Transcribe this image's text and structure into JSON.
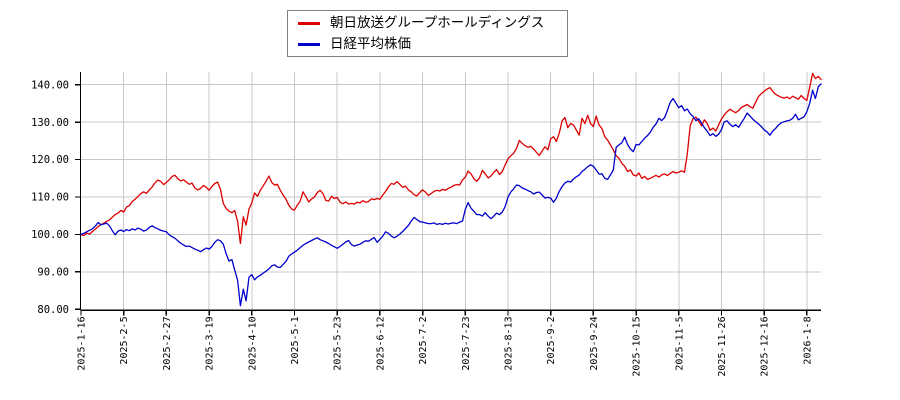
{
  "chart_data": {
    "type": "line",
    "title": "",
    "xlabel": "",
    "ylabel": "",
    "grid": true,
    "legend_position": "top-center",
    "ylim": [
      80,
      143.4
    ],
    "y_ticks": [
      80,
      90,
      100,
      110,
      120,
      130,
      140
    ],
    "y_tick_labels": [
      "80.00",
      "90.00",
      "100.00",
      "110.00",
      "120.00",
      "130.00",
      "140.00"
    ],
    "x_tick_labels": [
      "2025-1-16",
      "2025-2-5",
      "2025-2-27",
      "2025-3-19",
      "2025-4-10",
      "2025-5-1",
      "2025-5-23",
      "2025-6-12",
      "2025-7-2",
      "2025-7-23",
      "2025-8-13",
      "2025-9-2",
      "2025-9-24",
      "2025-10-15",
      "2025-11-5",
      "2025-11-26",
      "2025-12-16",
      "2026-1-8"
    ],
    "trading_days_per_tick": 15,
    "base_value": 100,
    "series": [
      {
        "name": "朝日放送グループホールディングス",
        "color": "#dd0000",
        "values": [
          100.0,
          99.7,
          100.4,
          100.1,
          100.8,
          101.4,
          102.1,
          102.6,
          103.0,
          103.5,
          103.9,
          104.6,
          105.3,
          105.7,
          106.4,
          106.0,
          107.3,
          107.7,
          108.8,
          109.4,
          110.1,
          110.9,
          111.4,
          111.0,
          111.9,
          112.7,
          113.8,
          114.5,
          114.2,
          113.3,
          113.9,
          114.6,
          115.5,
          115.8,
          114.9,
          114.3,
          114.6,
          114.0,
          113.4,
          113.7,
          112.4,
          111.9,
          112.3,
          113.1,
          112.6,
          111.8,
          112.8,
          113.6,
          114.0,
          112.0,
          108.3,
          106.9,
          106.2,
          105.8,
          106.4,
          103.5,
          97.6,
          104.7,
          102.5,
          106.8,
          108.4,
          111.1,
          110.2,
          111.8,
          113.0,
          114.2,
          115.6,
          113.9,
          113.2,
          113.4,
          111.8,
          110.5,
          109.4,
          107.8,
          106.8,
          106.5,
          107.8,
          108.9,
          111.4,
          110.1,
          108.7,
          109.5,
          110.0,
          111.2,
          111.8,
          110.9,
          109.1,
          108.9,
          110.2,
          109.6,
          109.9,
          108.6,
          108.2,
          108.7,
          108.1,
          108.3,
          108.1,
          108.6,
          108.4,
          109.0,
          108.6,
          108.8,
          109.5,
          109.3,
          109.6,
          109.4,
          110.5,
          111.5,
          112.7,
          113.6,
          113.4,
          114.1,
          113.4,
          112.6,
          112.9,
          111.9,
          111.4,
          110.6,
          110.3,
          111.2,
          111.9,
          111.3,
          110.4,
          110.9,
          111.5,
          111.8,
          111.6,
          112.0,
          111.8,
          112.3,
          112.6,
          113.1,
          113.3,
          113.2,
          114.5,
          115.3,
          116.9,
          116.2,
          114.9,
          114.2,
          115.1,
          117.1,
          116.2,
          115.1,
          115.6,
          116.6,
          117.3,
          116.0,
          116.8,
          118.6,
          120.2,
          121.0,
          121.7,
          123.0,
          125.1,
          124.3,
          123.7,
          123.3,
          123.5,
          122.8,
          121.9,
          121.1,
          122.3,
          123.4,
          122.6,
          125.5,
          126.1,
          124.8,
          127.0,
          130.3,
          131.2,
          128.5,
          129.6,
          129.2,
          127.9,
          126.5,
          131.0,
          129.6,
          131.8,
          129.6,
          128.8,
          131.6,
          129.2,
          128.3,
          126.1,
          125.2,
          123.9,
          122.6,
          121.0,
          120.3,
          119.0,
          118.2,
          116.8,
          117.2,
          115.9,
          115.6,
          116.4,
          115.0,
          115.5,
          114.7,
          115.0,
          115.4,
          115.8,
          115.3,
          115.9,
          116.2,
          115.7,
          116.3,
          116.8,
          116.4,
          116.6,
          117.0,
          116.6,
          121.5,
          129.0,
          130.9,
          131.3,
          130.2,
          129.0,
          130.6,
          129.6,
          127.8,
          128.4,
          127.6,
          129.3,
          130.8,
          131.9,
          132.8,
          133.4,
          132.9,
          132.5,
          133.1,
          133.9,
          134.3,
          134.7,
          134.1,
          133.7,
          135.3,
          136.8,
          137.6,
          138.2,
          138.8,
          139.2,
          138.2,
          137.4,
          137.0,
          136.6,
          136.4,
          136.7,
          136.2,
          136.9,
          136.5,
          136.1,
          137.1,
          136.3,
          135.8,
          139.3,
          143.0,
          141.6,
          142.2,
          141.4
        ]
      },
      {
        "name": "日経平均株価",
        "color": "#0000cc",
        "values": [
          100.0,
          100.3,
          100.7,
          101.1,
          101.5,
          102.2,
          103.2,
          102.6,
          102.8,
          103.0,
          102.3,
          101.0,
          99.9,
          100.9,
          101.2,
          100.8,
          101.3,
          101.0,
          101.5,
          101.2,
          101.7,
          101.4,
          100.9,
          101.2,
          101.9,
          102.3,
          101.8,
          101.5,
          101.1,
          100.9,
          100.7,
          99.9,
          99.4,
          99.0,
          98.3,
          97.7,
          97.2,
          96.8,
          96.9,
          96.5,
          96.1,
          95.8,
          95.4,
          95.9,
          96.4,
          96.1,
          96.8,
          97.9,
          98.6,
          98.3,
          97.4,
          94.8,
          92.9,
          93.3,
          90.5,
          87.8,
          81.0,
          85.4,
          82.3,
          88.6,
          89.3,
          87.9,
          88.7,
          89.1,
          89.7,
          90.2,
          90.8,
          91.6,
          91.9,
          91.3,
          91.2,
          92.0,
          92.8,
          94.2,
          94.8,
          95.3,
          95.8,
          96.5,
          97.1,
          97.6,
          98.0,
          98.4,
          98.8,
          99.1,
          98.6,
          98.3,
          98.0,
          97.6,
          97.1,
          96.7,
          96.3,
          96.8,
          97.4,
          98.0,
          98.4,
          97.3,
          96.9,
          97.2,
          97.4,
          97.9,
          98.3,
          98.2,
          98.7,
          99.2,
          97.9,
          98.7,
          99.5,
          100.7,
          100.3,
          99.6,
          99.1,
          99.5,
          100.1,
          100.8,
          101.6,
          102.4,
          103.6,
          104.5,
          104.0,
          103.4,
          103.3,
          103.1,
          102.9,
          102.9,
          103.1,
          102.7,
          102.9,
          102.7,
          103.0,
          102.8,
          103.0,
          103.1,
          102.9,
          103.3,
          103.6,
          106.7,
          108.5,
          107.0,
          106.2,
          105.3,
          105.3,
          104.9,
          105.8,
          104.9,
          104.2,
          104.9,
          105.7,
          105.3,
          106.0,
          107.5,
          110.0,
          111.3,
          112.2,
          113.2,
          113.0,
          112.4,
          112.1,
          111.7,
          111.4,
          110.8,
          111.2,
          111.3,
          110.5,
          109.7,
          109.9,
          109.7,
          108.6,
          109.7,
          111.5,
          112.8,
          113.7,
          114.2,
          114.0,
          114.8,
          115.4,
          115.9,
          116.8,
          117.4,
          118.1,
          118.6,
          118.2,
          117.2,
          116.1,
          116.2,
          115.0,
          114.7,
          115.9,
          117.2,
          123.3,
          123.9,
          124.5,
          126.0,
          124.0,
          122.8,
          122.1,
          124.0,
          123.9,
          124.8,
          125.7,
          126.4,
          127.3,
          128.6,
          129.5,
          131.0,
          130.4,
          131.2,
          133.1,
          135.3,
          136.3,
          135.0,
          133.8,
          134.4,
          133.0,
          133.5,
          132.2,
          131.5,
          130.4,
          130.9,
          129.7,
          128.5,
          127.5,
          126.4,
          126.9,
          126.2,
          126.8,
          128.0,
          130.1,
          130.3,
          129.4,
          128.8,
          129.3,
          128.6,
          129.8,
          131.0,
          132.4,
          131.6,
          130.8,
          130.1,
          129.5,
          128.8,
          127.9,
          127.4,
          126.5,
          127.6,
          128.3,
          129.2,
          129.8,
          130.1,
          130.3,
          130.5,
          131.0,
          132.1,
          130.6,
          131.0,
          131.4,
          132.8,
          135.0,
          138.5,
          136.3,
          139.4,
          140.2
        ]
      }
    ],
    "colors": {
      "grid": "#c8c8c8",
      "axis": "#000000",
      "background": "#ffffff",
      "legend_border": "#7f7f7f"
    }
  }
}
